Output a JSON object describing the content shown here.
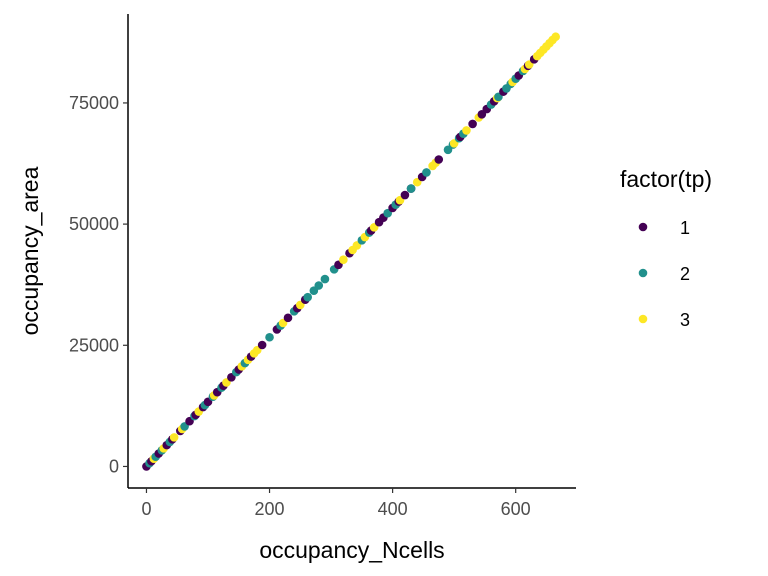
{
  "chart_data": {
    "type": "scatter",
    "xlabel": "occupancy_Ncells",
    "ylabel": "occupancy_area",
    "xlim": [
      -30,
      698
    ],
    "ylim": [
      -4445,
      93350
    ],
    "x_ticks": [
      0,
      200,
      400,
      600
    ],
    "x_tick_labels": [
      "0",
      "200",
      "400",
      "600"
    ],
    "y_ticks": [
      0,
      25000,
      50000,
      75000
    ],
    "y_tick_labels": [
      "0",
      "25000",
      "50000",
      "75000"
    ],
    "grid": false,
    "legend": {
      "title": "factor(tp)",
      "placement": "right",
      "entries": [
        "1",
        "2",
        "3"
      ]
    },
    "series": [
      {
        "name": "1",
        "color": "#440154",
        "points": [
          [
            0,
            0
          ],
          [
            8,
            1070
          ],
          [
            20,
            2670
          ],
          [
            33,
            4400
          ],
          [
            42,
            5600
          ],
          [
            55,
            7330
          ],
          [
            70,
            9330
          ],
          [
            80,
            10660
          ],
          [
            92,
            12260
          ],
          [
            100,
            13330
          ],
          [
            115,
            15330
          ],
          [
            125,
            16660
          ],
          [
            138,
            18400
          ],
          [
            150,
            20000
          ],
          [
            170,
            22660
          ],
          [
            188,
            25060
          ],
          [
            212,
            28260
          ],
          [
            230,
            30660
          ],
          [
            245,
            32660
          ],
          [
            258,
            34400
          ],
          [
            312,
            41600
          ],
          [
            330,
            44000
          ],
          [
            365,
            48660
          ],
          [
            378,
            50400
          ],
          [
            385,
            51330
          ],
          [
            400,
            53330
          ],
          [
            410,
            54660
          ],
          [
            420,
            56000
          ],
          [
            430,
            57330
          ],
          [
            448,
            59730
          ],
          [
            475,
            63330
          ],
          [
            510,
            68000
          ],
          [
            530,
            70660
          ],
          [
            545,
            72660
          ],
          [
            553,
            73730
          ],
          [
            565,
            75330
          ],
          [
            580,
            77330
          ],
          [
            605,
            80660
          ],
          [
            620,
            82660
          ],
          [
            630,
            84000
          ]
        ]
      },
      {
        "name": "2",
        "color": "#21908C",
        "points": [
          [
            5,
            670
          ],
          [
            15,
            2000
          ],
          [
            25,
            3330
          ],
          [
            38,
            5060
          ],
          [
            62,
            8260
          ],
          [
            78,
            10400
          ],
          [
            95,
            12660
          ],
          [
            108,
            14400
          ],
          [
            122,
            16260
          ],
          [
            146,
            19460
          ],
          [
            160,
            21330
          ],
          [
            200,
            26660
          ],
          [
            218,
            29060
          ],
          [
            240,
            32000
          ],
          [
            262,
            34930
          ],
          [
            272,
            36260
          ],
          [
            280,
            37330
          ],
          [
            290,
            38660
          ],
          [
            305,
            40660
          ],
          [
            350,
            46660
          ],
          [
            362,
            48260
          ],
          [
            392,
            52260
          ],
          [
            405,
            54000
          ],
          [
            430,
            57330
          ],
          [
            455,
            60660
          ],
          [
            490,
            65330
          ],
          [
            498,
            66400
          ],
          [
            508,
            67730
          ],
          [
            515,
            68660
          ],
          [
            560,
            74660
          ],
          [
            572,
            76260
          ],
          [
            585,
            78000
          ],
          [
            592,
            78930
          ],
          [
            600,
            80000
          ],
          [
            612,
            81600
          ]
        ]
      },
      {
        "name": "3",
        "color": "#FDE725",
        "points": [
          [
            12,
            1600
          ],
          [
            28,
            3730
          ],
          [
            45,
            6000
          ],
          [
            58,
            7730
          ],
          [
            85,
            11330
          ],
          [
            110,
            14660
          ],
          [
            130,
            17330
          ],
          [
            155,
            20660
          ],
          [
            165,
            22000
          ],
          [
            175,
            23330
          ],
          [
            180,
            24000
          ],
          [
            222,
            29600
          ],
          [
            250,
            33330
          ],
          [
            320,
            42660
          ],
          [
            335,
            44660
          ],
          [
            342,
            45600
          ],
          [
            355,
            47330
          ],
          [
            370,
            49330
          ],
          [
            412,
            54930
          ],
          [
            440,
            58660
          ],
          [
            465,
            62000
          ],
          [
            470,
            62660
          ],
          [
            500,
            66660
          ],
          [
            520,
            69330
          ],
          [
            540,
            72000
          ],
          [
            570,
            76000
          ],
          [
            595,
            79330
          ],
          [
            615,
            82000
          ],
          [
            622,
            82930
          ],
          [
            635,
            84660
          ],
          [
            640,
            85330
          ],
          [
            645,
            86000
          ],
          [
            650,
            86660
          ],
          [
            655,
            87330
          ],
          [
            660,
            88000
          ],
          [
            665,
            88660
          ]
        ]
      }
    ]
  }
}
